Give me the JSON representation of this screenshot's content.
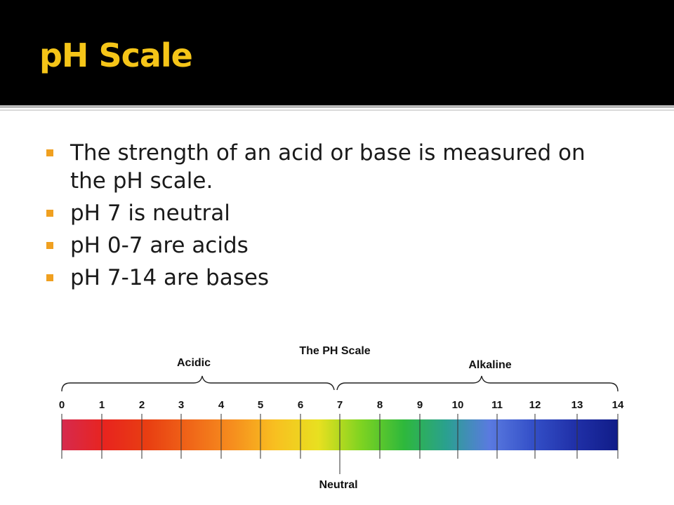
{
  "slide": {
    "title": "pH Scale",
    "colors": {
      "title_bar": "#000000",
      "title_text": "#f5c518",
      "bullet_marker": "#f0a020"
    },
    "bullets": [
      "The strength of an acid or base is measured on the pH scale.",
      "pH 7 is neutral",
      "pH 0-7 are acids",
      "pH 7-14 are bases"
    ]
  },
  "diagram": {
    "title": "The PH Scale",
    "acidic_label": "Acidic",
    "alkaline_label": "Alkaline",
    "neutral_label": "Neutral",
    "ticks": [
      "0",
      "1",
      "2",
      "3",
      "4",
      "5",
      "6",
      "7",
      "8",
      "9",
      "10",
      "11",
      "12",
      "13",
      "14"
    ],
    "segment_colors": [
      "#d62a4e",
      "#e8241e",
      "#e83e12",
      "#f06618",
      "#f68e1e",
      "#f8c020",
      "#e8e020",
      "#7ed321",
      "#2eb83c",
      "#2aa090",
      "#5a7ae0",
      "#3450c8",
      "#2030a8",
      "#101c88"
    ]
  }
}
